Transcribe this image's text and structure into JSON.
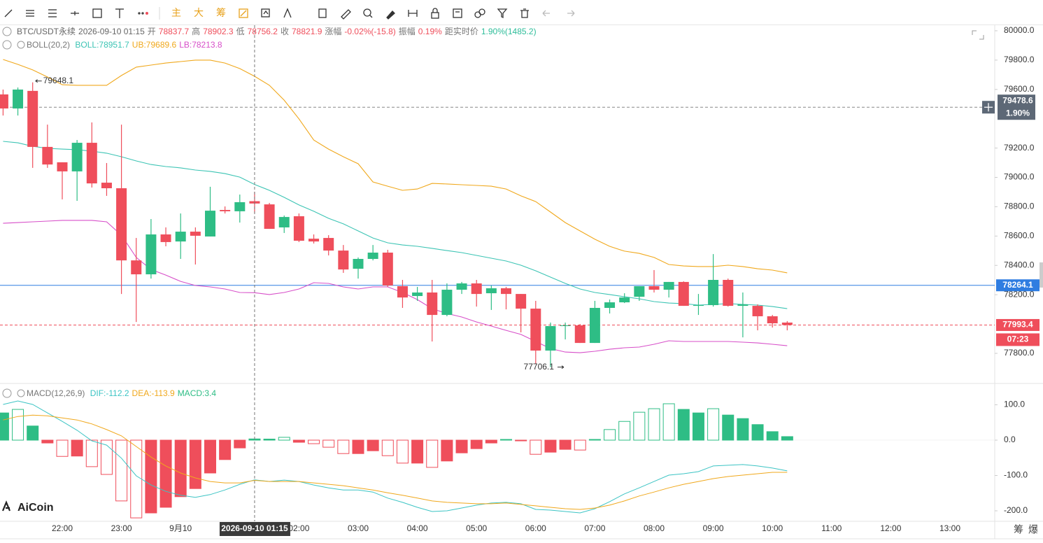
{
  "toolbar": {
    "labels": [
      "主",
      "大",
      "筹"
    ]
  },
  "footer": {
    "labels": [
      "筹",
      "爆"
    ]
  },
  "watermark": "AiCoin",
  "chart_data": [
    {
      "type": "candlestick",
      "symbol": "BTC/USDT永续",
      "time": "2026-09-10 01:15",
      "header": {
        "open": "开",
        "high": "高",
        "low": "低",
        "close": "收",
        "change_label": "涨幅",
        "change": "-0.02%(-15.8)",
        "amplitude_label": "振幅",
        "amplitude": "0.19%",
        "distance_label": "距实时价",
        "distance": "1.90%(1485.2)"
      },
      "categories": [
        null,
        null,
        null,
        null,
        "22:00",
        null,
        null,
        null,
        "23:00",
        null,
        null,
        null,
        "9月10",
        null,
        null,
        null,
        null,
        null,
        null,
        null,
        "02:00",
        null,
        null,
        null,
        "03:00",
        null,
        null,
        null,
        "04:00",
        null,
        null,
        null,
        "05:00",
        null,
        null,
        null,
        "06:00",
        null,
        null,
        null,
        "07:00",
        null,
        null,
        null,
        "08:00",
        null,
        null,
        null,
        "09:00",
        null,
        null,
        null,
        "10:00",
        null,
        null,
        null,
        "11:00",
        null,
        null,
        null,
        "12:00",
        null,
        null,
        null,
        "13:00",
        null,
        null
      ],
      "open": [
        79566,
        79470,
        79590,
        79208,
        79103,
        79041,
        79236,
        78964,
        78926,
        78434,
        78339,
        78611,
        78563,
        78630,
        78597,
        78778,
        78769,
        78837.7,
        78816,
        78659,
        78735,
        78582,
        78587,
        78501,
        78377,
        78444,
        78487,
        78258,
        78191,
        78215,
        78062,
        78234,
        78277,
        78210,
        78244,
        78205,
        78105,
        77819,
        77986,
        77991,
        77871,
        78110,
        78148,
        78186,
        78258,
        78234,
        78287,
        78124,
        78129,
        78301,
        78124,
        78124,
        78053,
        78010,
        null,
        null,
        null,
        null,
        null,
        null,
        null,
        null,
        null,
        null,
        null,
        null,
        null
      ],
      "high": [
        79599,
        79613,
        79648.1,
        79360,
        79103,
        79255,
        79375,
        79098,
        79360,
        78587,
        78716,
        78659,
        78754,
        78659,
        78936,
        78802,
        78883,
        78902.3,
        78826,
        78740,
        78754,
        78611,
        78606,
        78539,
        78454,
        78539,
        78506,
        78301,
        78253,
        78301,
        78277,
        78287,
        78301,
        78263,
        78253,
        78205,
        78158,
        78010,
        78010,
        78000,
        78158,
        78167,
        78210,
        78258,
        78368,
        78287,
        78291,
        78205,
        78477,
        78310,
        78215,
        78134,
        78062,
        78020,
        null,
        null,
        null,
        null,
        null,
        null,
        null,
        null,
        null,
        null,
        null,
        null,
        null
      ],
      "low": [
        79422,
        79422,
        79065,
        79065,
        78850,
        78840,
        78931,
        78874,
        78205,
        78014,
        78310,
        78530,
        78444,
        78406,
        78597,
        78754,
        78692,
        78756.2,
        78649,
        78621,
        78559,
        78549,
        78468,
        78349,
        78310,
        78434,
        78253,
        78110,
        78158,
        77881,
        78053,
        78205,
        78119,
        78096,
        78100,
        77943,
        77728,
        77706.1,
        77895,
        77871,
        77871,
        78072,
        78143,
        78158,
        78215,
        78181,
        78124,
        78062,
        78119,
        78119,
        77909,
        77957,
        77976,
        77957,
        null,
        null,
        null,
        null,
        null,
        null,
        null,
        null,
        null,
        null,
        null,
        null,
        null
      ],
      "close": [
        79470,
        79599,
        79208,
        79088,
        79041,
        79236,
        78959,
        78926,
        78434,
        78339,
        78611,
        78559,
        78630,
        78602,
        78773,
        78769,
        78831,
        78821.9,
        78649,
        78730,
        78568,
        78563,
        78501,
        78372,
        78444,
        78487,
        78263,
        78181,
        78215,
        78062,
        78234,
        78277,
        78205,
        78244,
        78205,
        78105,
        77819,
        77986,
        77991,
        77871,
        78110,
        78148,
        78181,
        78258,
        78234,
        78287,
        78124,
        78129,
        78301,
        78124,
        78134,
        78053,
        78005,
        77993.4,
        null,
        null,
        null,
        null,
        null,
        null,
        null,
        null,
        null,
        null,
        null,
        null,
        null
      ],
      "up_color": "#2ebd85",
      "down_color": "#ef4e5b",
      "overlay": {
        "name": "BOLL(20,2)",
        "series": [
          {
            "name": "BOLL",
            "label": "BOLL:78951.7",
            "color": "#3cc4b4",
            "values": [
              79246,
              79236,
              79212,
              79198,
              79193,
              79189,
              79179,
              79165,
              79141,
              79112,
              79088,
              79074,
              79065,
              79050,
              79041,
              79026,
              79002,
              78951.7,
              78912,
              78864,
              78812,
              78769,
              78721,
              78683,
              78635,
              78587,
              78554,
              78539,
              78530,
              78516,
              78501,
              78487,
              78468,
              78449,
              78430,
              78401,
              78363,
              78320,
              78277,
              78239,
              78215,
              78201,
              78186,
              78172,
              78153,
              78143,
              78139,
              78129,
              78134,
              78139,
              78134,
              78129,
              78119,
              78105,
              null,
              null,
              null,
              null,
              null,
              null,
              null,
              null,
              null,
              null,
              null,
              null,
              null
            ]
          },
          {
            "name": "UB",
            "label": "UB:79689.6",
            "color": "#f0a81c",
            "values": [
              79804,
              79771,
              79733,
              79685,
              79632,
              79628,
              79628,
              79628,
              79695,
              79752,
              79766,
              79780,
              79790,
              79800,
              79800,
              79780,
              79742,
              79689.6,
              79628,
              79527,
              79399,
              79255,
              79193,
              79141,
              79093,
              78969,
              78940,
              78912,
              78921,
              78959,
              78955,
              78950,
              78945,
              78940,
              78921,
              78874,
              78835,
              78764,
              78692,
              78635,
              78578,
              78530,
              78497,
              78482,
              78454,
              78406,
              78396,
              78392,
              78392,
              78401,
              78392,
              78377,
              78368,
              78349,
              null,
              null,
              null,
              null,
              null,
              null,
              null,
              null,
              null,
              null,
              null,
              null,
              null
            ]
          },
          {
            "name": "LB",
            "label": "LB:78213.8",
            "color": "#d74fc9",
            "values": [
              78687,
              78692,
              78697,
              78702,
              78707,
              78707,
              78707,
              78697,
              78606,
              78454,
              78372,
              78334,
              78291,
              78263,
              78253,
              78239,
              78215,
              78213.8,
              78201,
              78215,
              78239,
              78282,
              78277,
              78253,
              78239,
              78253,
              78253,
              78215,
              78167,
              78105,
              78072,
              78048,
              78014,
              77986,
              77957,
              77929,
              77881,
              77833,
              77809,
              77804,
              77814,
              77828,
              77838,
              77843,
              77862,
              77886,
              77881,
              77881,
              77881,
              77881,
              77876,
              77871,
              77862,
              77852,
              null,
              null,
              null,
              null,
              null,
              null,
              null,
              null,
              null,
              null,
              null,
              null,
              null
            ]
          }
        ]
      },
      "ylim": [
        77609,
        80038
      ],
      "yticks": [
        {
          "value": 80000,
          "label": "80000.0"
        },
        {
          "value": 79800,
          "label": "79800.0"
        },
        {
          "value": 79600,
          "label": "79600.0"
        },
        {
          "value": 79200,
          "label": "79200.0"
        },
        {
          "value": 79000,
          "label": "79000.0"
        },
        {
          "value": 78800,
          "label": "78800.0"
        },
        {
          "value": 78600,
          "label": "78600.0"
        },
        {
          "value": 78400,
          "label": "78400.0"
        },
        {
          "value": 78200,
          "label": "78200.0"
        },
        {
          "value": 77800,
          "label": "77800.0"
        }
      ],
      "grid": false,
      "alert_line": {
        "value": 79478.6,
        "percent": "1.90%",
        "color": "#5d6876"
      },
      "hline": {
        "value": 78264.1,
        "color": "#2f7de1"
      },
      "countdown": "07:23"
    },
    {
      "type": "macd",
      "name": "MACD(12,26,9)",
      "categories_from": "chart_data.0.categories",
      "histogram": {
        "name": "MACD",
        "label": "MACD:3.4",
        "values": [
          77,
          87,
          40,
          -8,
          -46,
          -45,
          -75,
          -97,
          -172,
          -220,
          -206,
          -190,
          -160,
          -137,
          -93,
          -55,
          -22,
          3.4,
          3,
          8,
          -6,
          -10,
          -20,
          -38,
          -38,
          -30,
          -44,
          -65,
          -65,
          -77,
          -59,
          -36,
          -24,
          -8,
          2,
          -2,
          -40,
          -34,
          -26,
          -28,
          2,
          30,
          53,
          79,
          89,
          103,
          87,
          77,
          89,
          71,
          61,
          44,
          24,
          10,
          null,
          null,
          null,
          null,
          null,
          null,
          null,
          null,
          null,
          null,
          null,
          null,
          null
        ]
      },
      "series": [
        {
          "name": "DIF",
          "label": "DIF:-112.2",
          "color": "#3cc4c4",
          "values": [
            101,
            111,
            101,
            77,
            53,
            28,
            -2,
            -14,
            -51,
            -101,
            -127,
            -145,
            -156,
            -162,
            -154,
            -141,
            -125,
            -112.2,
            -117,
            -113,
            -117,
            -127,
            -135,
            -141,
            -141,
            -147,
            -164,
            -176,
            -190,
            -202,
            -200,
            -192,
            -184,
            -178,
            -176,
            -180,
            -196,
            -198,
            -202,
            -206,
            -194,
            -174,
            -152,
            -135,
            -117,
            -99,
            -95,
            -89,
            -73,
            -71,
            -69,
            -73,
            -79,
            -87,
            null,
            null,
            null,
            null,
            null,
            null,
            null,
            null,
            null,
            null,
            null,
            null,
            null
          ]
        },
        {
          "name": "DEA",
          "label": "DEA:-113.9",
          "color": "#f0a81c",
          "values": [
            57,
            67,
            71,
            69,
            63,
            57,
            46,
            30,
            12,
            -18,
            -48,
            -73,
            -93,
            -107,
            -117,
            -121,
            -121,
            -113.9,
            -117,
            -117,
            -117,
            -121,
            -125,
            -129,
            -135,
            -141,
            -149,
            -156,
            -164,
            -172,
            -176,
            -178,
            -180,
            -180,
            -178,
            -182,
            -186,
            -190,
            -194,
            -196,
            -192,
            -184,
            -172,
            -158,
            -147,
            -135,
            -125,
            -117,
            -109,
            -103,
            -99,
            -95,
            -91,
            -91,
            null,
            null,
            null,
            null,
            null,
            null,
            null,
            null,
            null,
            null,
            null,
            null,
            null
          ]
        }
      ],
      "ylim": [
        -229.7,
        152.5
      ],
      "yticks": [
        {
          "value": 100,
          "label": "100.0"
        },
        {
          "value": 0,
          "label": "0.0"
        },
        {
          "value": -100,
          "label": "-100.0"
        },
        {
          "value": -200,
          "label": "-200.0"
        }
      ]
    }
  ]
}
